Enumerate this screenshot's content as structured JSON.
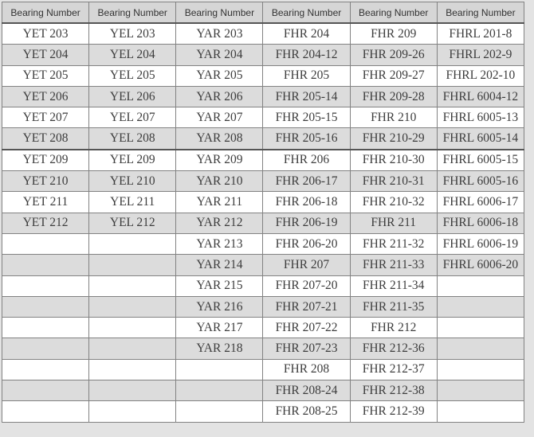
{
  "page": {
    "background_color": "#e3e3e3"
  },
  "table": {
    "columns": [
      "Bearing Number",
      "Bearing Number",
      "Bearing Number",
      "Bearing Number",
      "Bearing Number",
      "Bearing Number"
    ],
    "rows": [
      [
        "YET 203",
        "YEL 203",
        "YAR 203",
        "FHR 204",
        "FHR 209",
        "FHRL 201-8"
      ],
      [
        "YET 204",
        "YEL 204",
        "YAR 204",
        "FHR 204-12",
        "FHR 209-26",
        "FHRL 202-9"
      ],
      [
        "YET 205",
        "YEL 205",
        "YAR 205",
        "FHR 205",
        "FHR 209-27",
        "FHRL 202-10"
      ],
      [
        "YET 206",
        "YEL 206",
        "YAR 206",
        "FHR 205-14",
        "FHR 209-28",
        "FHRL 6004-12"
      ],
      [
        "YET 207",
        "YEL 207",
        "YAR 207",
        "FHR 205-15",
        "FHR 210",
        "FHRL 6005-13"
      ],
      [
        "YET 208",
        "YEL 208",
        "YAR 208",
        "FHR 205-16",
        "FHR 210-29",
        "FHRL 6005-14"
      ],
      [
        "YET 209",
        "YEL 209",
        "YAR 209",
        "FHR 206",
        "FHR 210-30",
        "FHRL 6005-15"
      ],
      [
        "YET 210",
        "YEL 210",
        "YAR 210",
        "FHR 206-17",
        "FHR 210-31",
        "FHRL 6005-16"
      ],
      [
        "YET 211",
        "YEL 211",
        "YAR 211",
        "FHR 206-18",
        "FHR 210-32",
        "FHRL 6006-17"
      ],
      [
        "YET 212",
        "YEL 212",
        "YAR 212",
        "FHR 206-19",
        "FHR 211",
        "FHRL 6006-18"
      ],
      [
        "",
        "",
        "YAR 213",
        "FHR 206-20",
        "FHR 211-32",
        "FHRL 6006-19"
      ],
      [
        "",
        "",
        "YAR 214",
        "FHR 207",
        "FHR 211-33",
        "FHRL 6006-20"
      ],
      [
        "",
        "",
        "YAR 215",
        "FHR 207-20",
        "FHR 211-34",
        ""
      ],
      [
        "",
        "",
        "YAR 216",
        "FHR 207-21",
        "FHR 211-35",
        ""
      ],
      [
        "",
        "",
        "YAR 217",
        "FHR 207-22",
        "FHR 212",
        ""
      ],
      [
        "",
        "",
        "YAR 218",
        "FHR 207-23",
        "FHR 212-36",
        ""
      ],
      [
        "",
        "",
        "",
        "FHR 208",
        "FHR 212-37",
        ""
      ],
      [
        "",
        "",
        "",
        "FHR 208-24",
        "FHR 212-38",
        ""
      ],
      [
        "",
        "",
        "",
        "FHR 208-25",
        "FHR 212-39",
        ""
      ]
    ],
    "section_divider_after_row": 6,
    "colors": {
      "header_background": "#d6d6d6",
      "stripe_background": "#dcdcdc",
      "row_background": "#ffffff",
      "grid_border": "#828282",
      "section_divider": "#555555",
      "text": "#3d3d3d"
    }
  }
}
